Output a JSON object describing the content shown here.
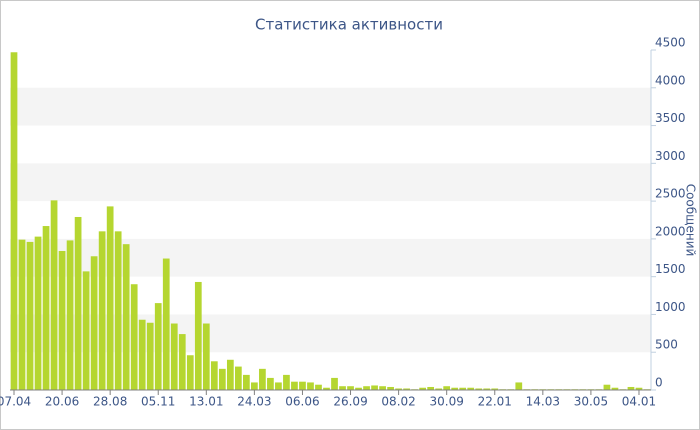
{
  "chart_data": {
    "type": "bar",
    "title": "Статистика активности",
    "y_label": "Сообщений",
    "categories": [
      "07.04",
      null,
      null,
      null,
      null,
      null,
      "20.06",
      null,
      null,
      null,
      null,
      null,
      "28.08",
      null,
      null,
      null,
      null,
      null,
      "05.11",
      null,
      null,
      null,
      null,
      null,
      "13.01",
      null,
      null,
      null,
      null,
      null,
      "24.03",
      null,
      null,
      null,
      null,
      null,
      "06.06",
      null,
      null,
      null,
      null,
      null,
      "26.09",
      null,
      null,
      null,
      null,
      null,
      "08.02",
      null,
      null,
      null,
      null,
      null,
      "30.09",
      null,
      null,
      null,
      null,
      null,
      "22.01",
      null,
      null,
      null,
      null,
      null,
      "14.03",
      null,
      null,
      null,
      null,
      null,
      "30.05",
      null,
      null,
      null,
      null,
      null,
      "04.01",
      null
    ],
    "values": [
      4470,
      1990,
      1960,
      2030,
      2170,
      2510,
      1840,
      1980,
      2290,
      1570,
      1770,
      2100,
      2430,
      2100,
      1930,
      1400,
      930,
      890,
      1150,
      1740,
      880,
      740,
      460,
      1430,
      880,
      380,
      280,
      400,
      310,
      200,
      100,
      280,
      160,
      100,
      200,
      110,
      110,
      100,
      70,
      30,
      160,
      50,
      50,
      30,
      50,
      60,
      50,
      40,
      20,
      20,
      10,
      30,
      40,
      20,
      50,
      30,
      30,
      30,
      20,
      20,
      20,
      10,
      10,
      100,
      10,
      10,
      10,
      10,
      10,
      10,
      10,
      10,
      10,
      10,
      70,
      30,
      10,
      40,
      30,
      10
    ],
    "color": "#b5d630",
    "ylim": [
      0,
      4500
    ],
    "yticks": [
      0,
      500,
      1000,
      1500,
      2000,
      2500,
      3000,
      3500,
      4000,
      4500
    ],
    "grid": "bands",
    "band_color": "#f4f4f4",
    "y_axis_side": "right"
  }
}
